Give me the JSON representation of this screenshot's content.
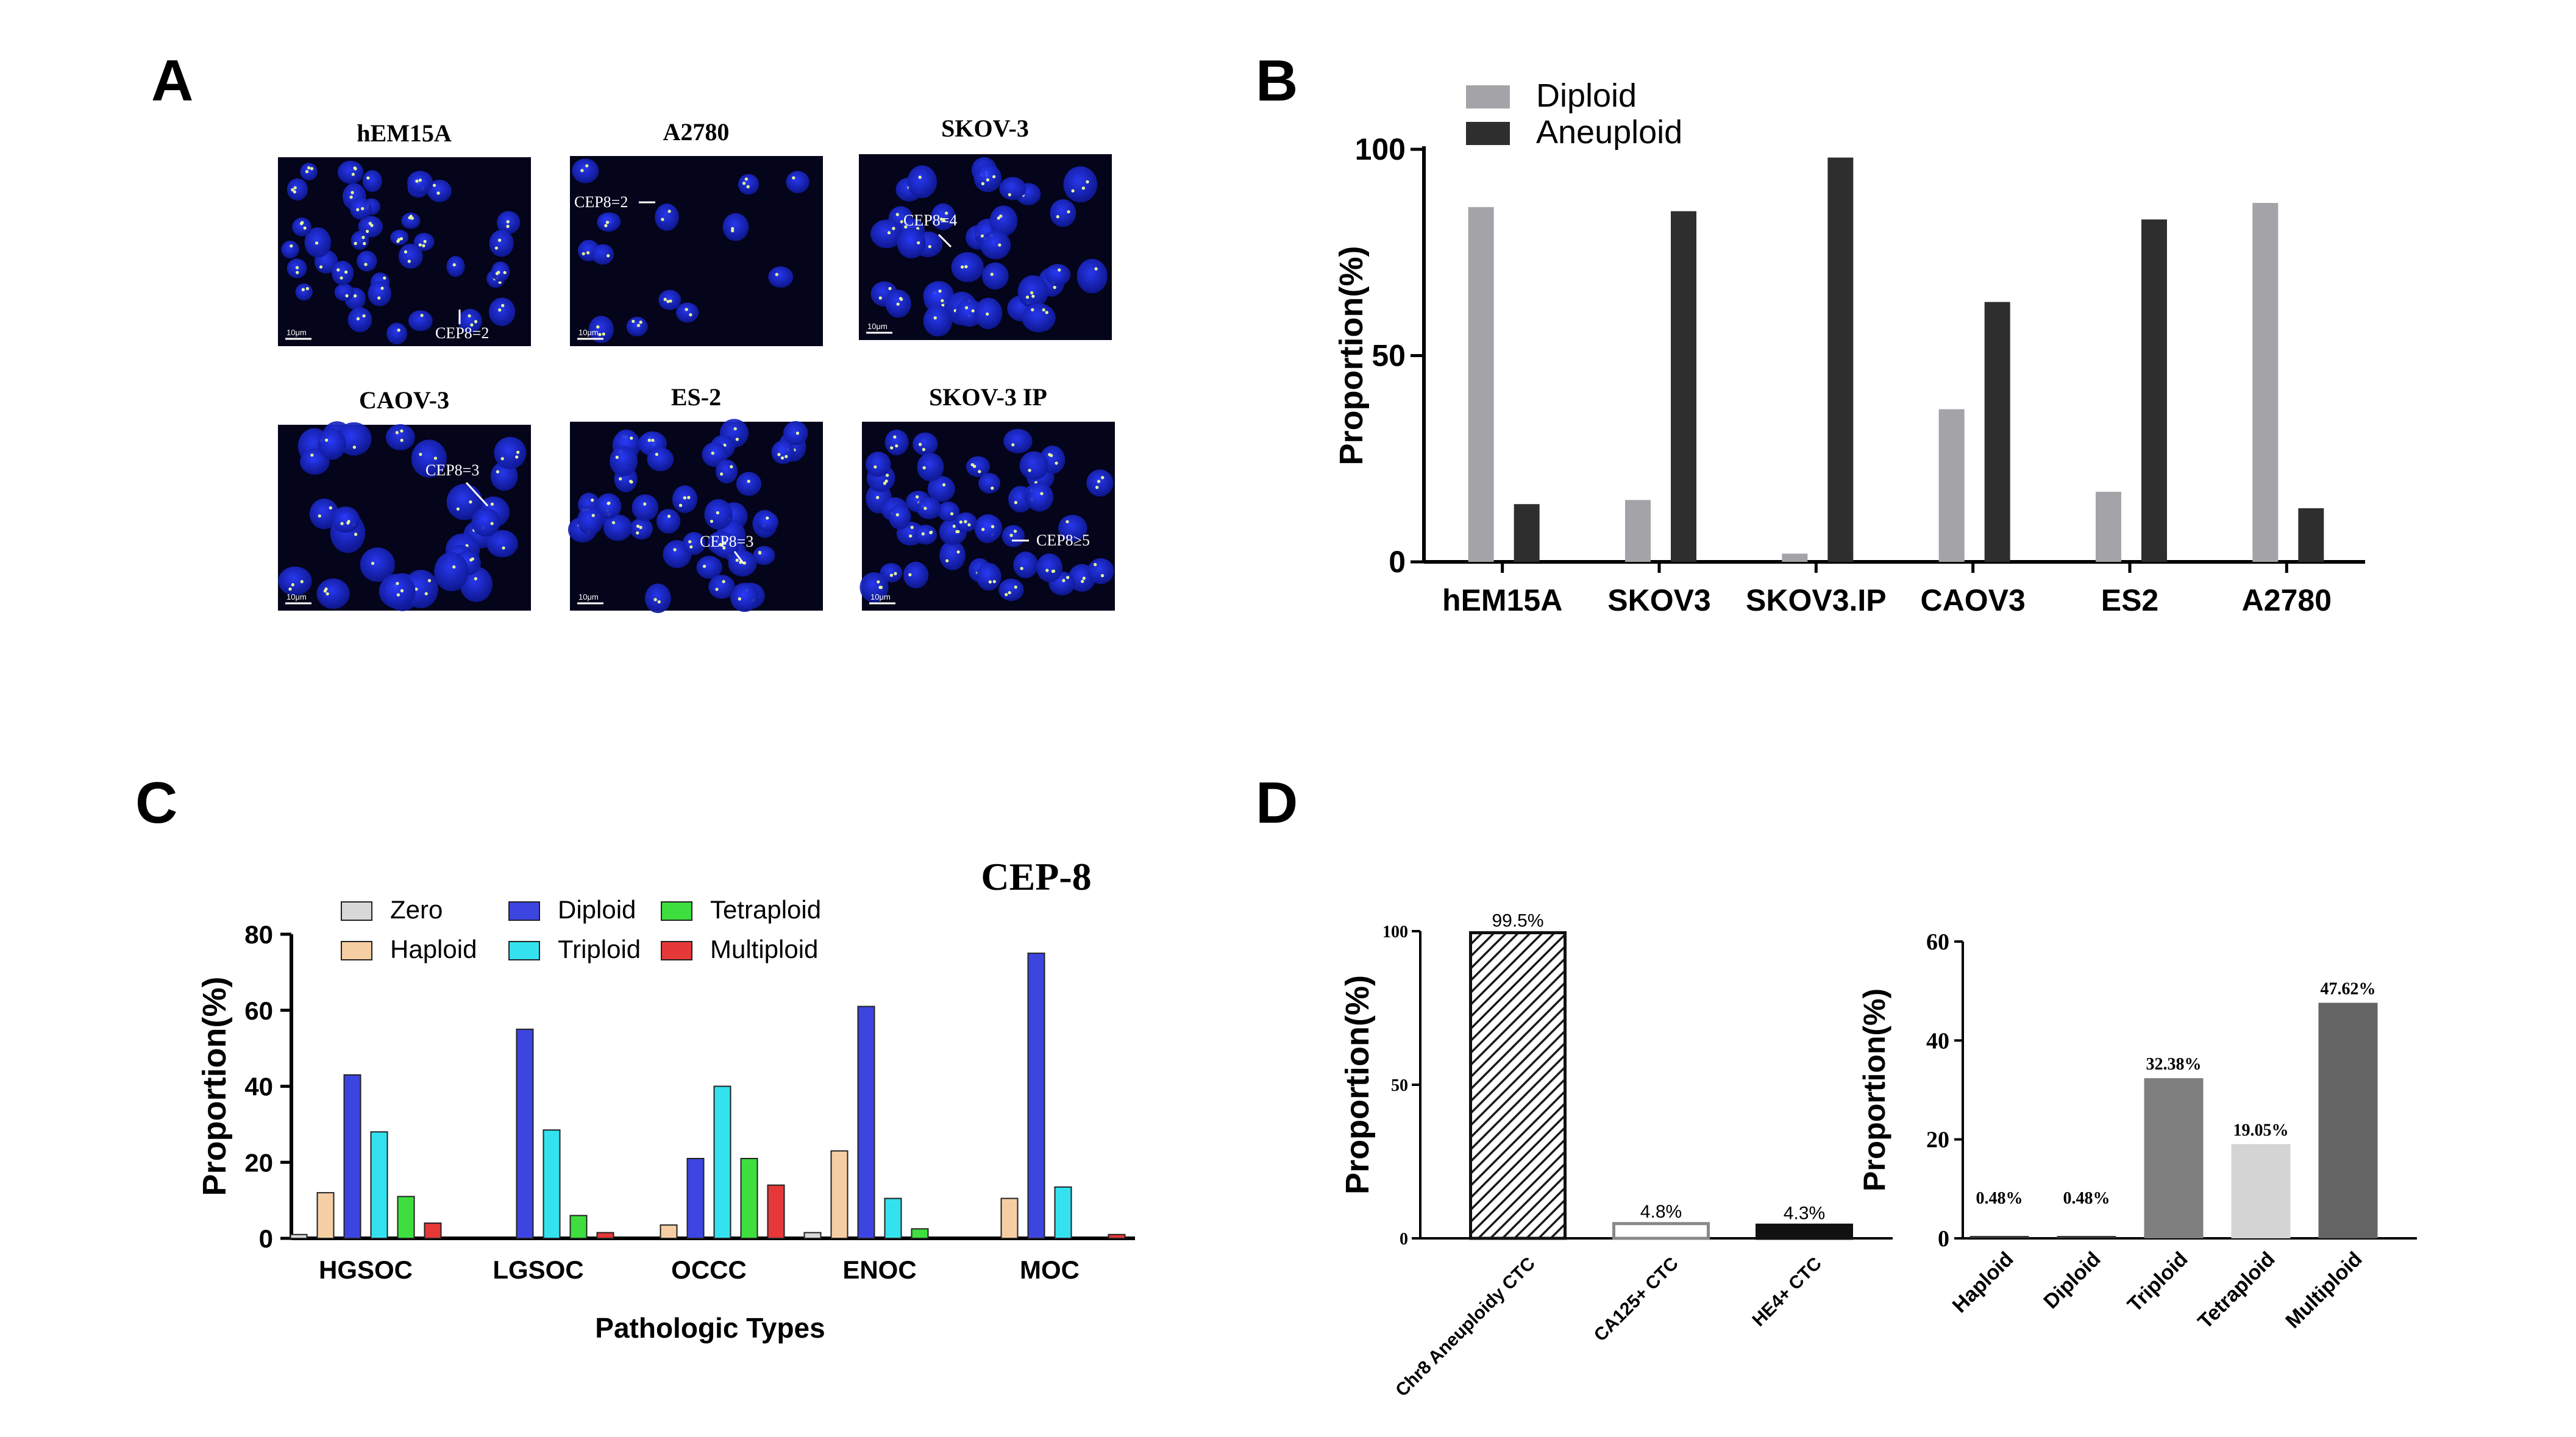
{
  "panels": {
    "A": {
      "letter": "A",
      "scale_bar_label": "10μm",
      "images": [
        {
          "title": "hEM15A",
          "annotation": "CEP8=2"
        },
        {
          "title": "A2780",
          "annotation": "CEP8=2"
        },
        {
          "title": "SKOV-3",
          "annotation": "CEP8=4"
        },
        {
          "title": "CAOV-3",
          "annotation": "CEP8=3"
        },
        {
          "title": "ES-2",
          "annotation": "CEP8=3"
        },
        {
          "title": "SKOV-3 IP",
          "annotation": "CEP8≥5"
        }
      ]
    },
    "B": {
      "letter": "B"
    },
    "C": {
      "letter": "C"
    },
    "D": {
      "letter": "D"
    }
  },
  "colors": {
    "image_background": "#04041a",
    "nucleus": "#1f2fd8",
    "diploid_gray": "#a4a4a8",
    "aneuploid_dark": "#2e2e2e",
    "zero": "#d8d8d8",
    "haploid": "#f5cfa3",
    "diploid_blue": "#3d45e0",
    "triploid": "#33e2ee",
    "tetraploid": "#3ede3e",
    "multiploid": "#e63838"
  },
  "chart_data": [
    {
      "panel": "B",
      "type": "bar",
      "categories": [
        "hEM15A",
        "SKOV3",
        "SKOV3.IP",
        "CAOV3",
        "ES2",
        "A2780"
      ],
      "series": [
        {
          "name": "Diploid",
          "values": [
            86,
            15,
            2,
            37,
            17,
            87
          ]
        },
        {
          "name": "Aneuploid",
          "values": [
            14,
            85,
            98,
            63,
            83,
            13
          ]
        }
      ],
      "ylabel": "Proportion(%)",
      "ylim": [
        0,
        100
      ],
      "yticks": [
        0,
        50,
        100
      ],
      "legend": "top-left"
    },
    {
      "panel": "C",
      "type": "bar",
      "title": "CEP-8",
      "categories": [
        "HGSOC",
        "LGSOC",
        "OCCC",
        "ENOC",
        "MOC"
      ],
      "series": [
        {
          "name": "Zero",
          "values": [
            1,
            0,
            0,
            1.5,
            0
          ]
        },
        {
          "name": "Haploid",
          "values": [
            12,
            0,
            3.5,
            23,
            10.5
          ]
        },
        {
          "name": "Diploid",
          "values": [
            43,
            55,
            21,
            61,
            75
          ]
        },
        {
          "name": "Triploid",
          "values": [
            28,
            28.5,
            40,
            10.5,
            13.5
          ]
        },
        {
          "name": "Tetraploid",
          "values": [
            11,
            6,
            21,
            2.5,
            0
          ]
        },
        {
          "name": "Multiploid",
          "values": [
            4,
            1.5,
            14,
            0,
            1
          ]
        }
      ],
      "xlabel": "Pathologic Types",
      "ylabel": "Proportion(%)",
      "ylim": [
        0,
        80
      ],
      "yticks": [
        0,
        20,
        40,
        60,
        80
      ],
      "legend": "top"
    },
    {
      "panel": "D-left",
      "type": "bar",
      "categories": [
        "Chr8 Aneuploidy CTC",
        "CA125+ CTC",
        "HE4+ CTC"
      ],
      "values": [
        99.5,
        4.8,
        4.3
      ],
      "data_labels": [
        "99.5%",
        "4.8%",
        "4.3%"
      ],
      "ylabel": "Proportion(%)",
      "ylim": [
        0,
        100
      ],
      "yticks": [
        0,
        50,
        100
      ]
    },
    {
      "panel": "D-right",
      "type": "bar",
      "categories": [
        "Haploid",
        "Diploid",
        "Triploid",
        "Tetraploid",
        "Multiploid"
      ],
      "values": [
        0.48,
        0.48,
        32.38,
        19.05,
        47.62
      ],
      "data_labels": [
        "0.48%",
        "0.48%",
        "32.38%",
        "19.05%",
        "47.62%"
      ],
      "ylabel": "Proportion(%)",
      "ylim": [
        0,
        60
      ],
      "yticks": [
        0,
        20,
        40,
        60
      ]
    }
  ]
}
